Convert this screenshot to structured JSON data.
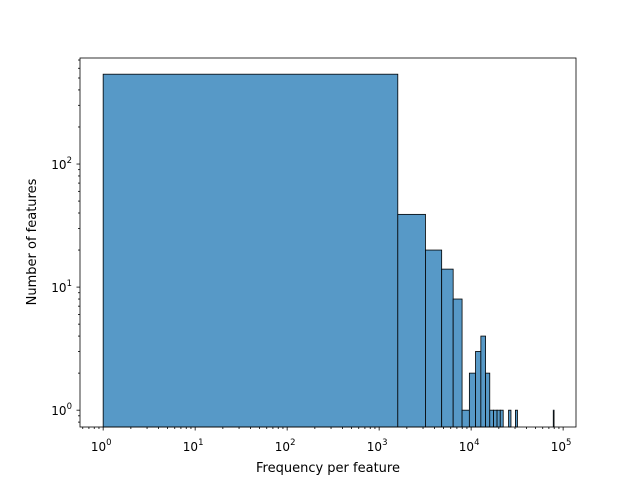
{
  "chart_data": {
    "type": "bar",
    "subtype": "histogram",
    "title": "",
    "xlabel": "Frequency per feature",
    "ylabel": "Number of features",
    "xscale": "log",
    "yscale": "log",
    "xlim": [
      0.56,
      138000
    ],
    "ylim": [
      0.73,
      727
    ],
    "grid": false,
    "bar_color": "#5799c7",
    "edge_color": "#000000",
    "bin_start": 1,
    "bin_width": 1594,
    "bins": [
      {
        "index": 0,
        "count": 537
      },
      {
        "index": 1,
        "count": 39
      },
      {
        "index": 2,
        "count": 20
      },
      {
        "index": 3,
        "count": 14
      },
      {
        "index": 4,
        "count": 8
      },
      {
        "index": 5,
        "count": 1
      },
      {
        "index": 6,
        "count": 2
      },
      {
        "index": 7,
        "count": 3
      },
      {
        "index": 8,
        "count": 4
      },
      {
        "index": 9,
        "count": 2
      },
      {
        "index": 10,
        "count": 1
      },
      {
        "index": 11,
        "count": 1
      },
      {
        "index": 12,
        "count": 1
      },
      {
        "index": 13,
        "count": 1
      },
      {
        "index": 16,
        "count": 1
      },
      {
        "index": 19,
        "count": 1
      },
      {
        "index": 49,
        "count": 1
      }
    ],
    "xticks": [
      {
        "value": 1,
        "base": "10",
        "exp": "0"
      },
      {
        "value": 10,
        "base": "10",
        "exp": "1"
      },
      {
        "value": 100,
        "base": "10",
        "exp": "2"
      },
      {
        "value": 1000,
        "base": "10",
        "exp": "3"
      },
      {
        "value": 10000,
        "base": "10",
        "exp": "4"
      },
      {
        "value": 100000,
        "base": "10",
        "exp": "5"
      }
    ],
    "yticks": [
      {
        "value": 1,
        "base": "10",
        "exp": "0"
      },
      {
        "value": 10,
        "base": "10",
        "exp": "1"
      },
      {
        "value": 100,
        "base": "10",
        "exp": "2"
      }
    ]
  }
}
